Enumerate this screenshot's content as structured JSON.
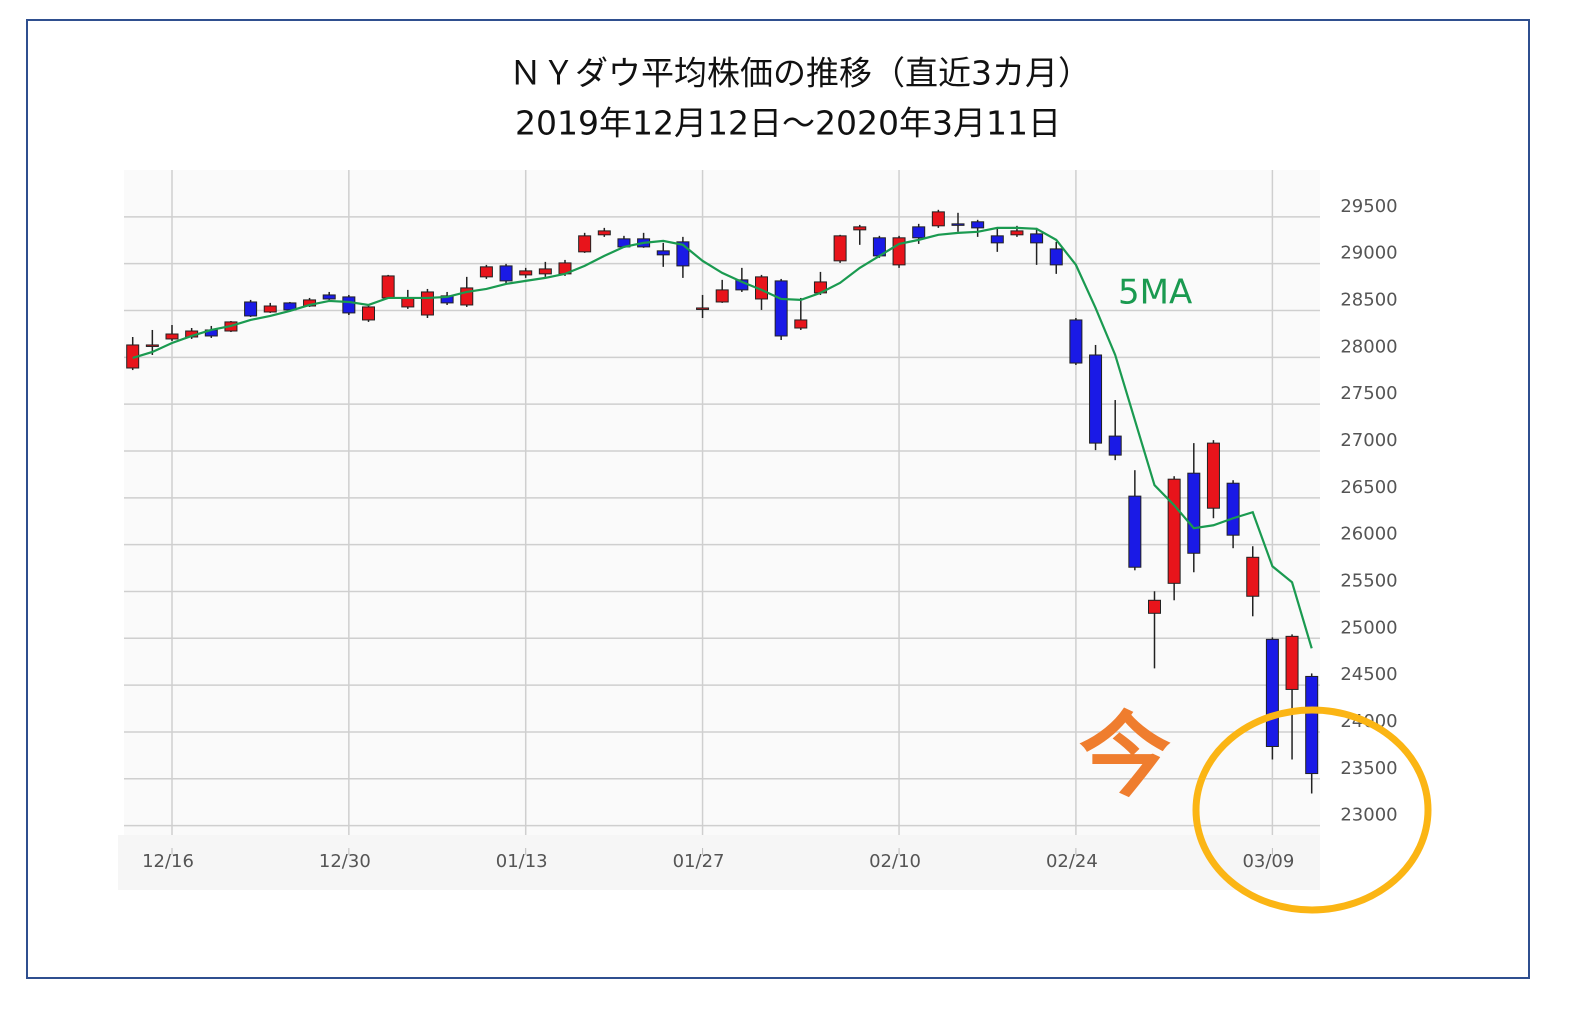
{
  "chart_data": {
    "type": "candlestick",
    "title": "ＮＹダウ平均株価の推移（直近3カ月）",
    "subtitle": "2019年12月12日～2020年3月11日",
    "categories": [
      null,
      null,
      "12/16",
      null,
      null,
      null,
      null,
      null,
      null,
      null,
      null,
      "12/30",
      null,
      null,
      null,
      null,
      null,
      null,
      null,
      null,
      "01/13",
      null,
      null,
      null,
      null,
      null,
      null,
      null,
      null,
      "01/27",
      null,
      null,
      null,
      null,
      null,
      null,
      null,
      null,
      null,
      "02/10",
      null,
      null,
      null,
      null,
      null,
      null,
      null,
      null,
      "02/24",
      null,
      null,
      null,
      null,
      null,
      null,
      null,
      null,
      null,
      "03/09",
      null,
      null
    ],
    "open": [
      27886,
      28132,
      28196,
      28217,
      28292,
      28281,
      28591,
      28484,
      28581,
      28548,
      28666,
      28645,
      28399,
      28634,
      28538,
      28452,
      28656,
      28559,
      28859,
      28976,
      28880,
      28891,
      28891,
      29126,
      29308,
      29265,
      29265,
      29137,
      29233,
      28527,
      28591,
      28827,
      28623,
      28816,
      28313,
      28688,
      29030,
      29361,
      29276,
      28987,
      29393,
      29404,
      29425,
      29447,
      29297,
      29308,
      29318,
      29158,
      28399,
      28025,
      27159,
      26518,
      25267,
      25587,
      26763,
      26389,
      26656,
      25449,
      24989,
      24454,
      24593
    ],
    "high": [
      28217,
      28292,
      28345,
      28313,
      28335,
      28388,
      28613,
      28581,
      28591,
      28634,
      28698,
      28666,
      28559,
      28880,
      28720,
      28730,
      28698,
      28859,
      28987,
      28998,
      28955,
      29019,
      29040,
      29329,
      29382,
      29297,
      29329,
      29222,
      29286,
      28666,
      28827,
      28955,
      28880,
      28837,
      28634,
      28912,
      29308,
      29414,
      29297,
      29297,
      29425,
      29575,
      29543,
      29468,
      29382,
      29404,
      29382,
      29233,
      28420,
      28132,
      27544,
      26795,
      25502,
      26731,
      27084,
      27116,
      26688,
      25983,
      25010,
      25042,
      24625
    ],
    "low": [
      27864,
      28025,
      28174,
      28196,
      28207,
      28270,
      28431,
      28474,
      28495,
      28538,
      28613,
      28452,
      28378,
      28623,
      28517,
      28420,
      28559,
      28538,
      28837,
      28784,
      28848,
      28859,
      28869,
      29115,
      29286,
      29169,
      29169,
      28966,
      28848,
      28420,
      28581,
      28698,
      28506,
      28185,
      28292,
      28666,
      29008,
      29201,
      29062,
      28955,
      29211,
      29382,
      29340,
      29286,
      29126,
      29286,
      28987,
      28891,
      27918,
      27009,
      26902,
      25726,
      24679,
      25406,
      25705,
      26282,
      25962,
      25235,
      23706,
      23706,
      23343
    ],
    "close": [
      28132,
      28132,
      28249,
      28281,
      28228,
      28378,
      28442,
      28548,
      28506,
      28613,
      28623,
      28474,
      28538,
      28869,
      28634,
      28698,
      28581,
      28741,
      28966,
      28816,
      28923,
      28944,
      29008,
      29297,
      29350,
      29179,
      29179,
      29094,
      28976,
      28527,
      28720,
      28720,
      28859,
      28228,
      28399,
      28805,
      29297,
      29393,
      29083,
      29276,
      29276,
      29553,
      29414,
      29382,
      29222,
      29350,
      29222,
      28987,
      27939,
      27084,
      26956,
      25759,
      25406,
      26699,
      25908,
      27084,
      26101,
      25865,
      23845,
      25021,
      23556
    ],
    "up_color": "#e8141b",
    "down_color": "#1a1ae6",
    "lines": [
      {
        "name": "5MA",
        "color": "#1a9a50",
        "values": [
          27993,
          28057,
          28153,
          28228,
          28292,
          28335,
          28399,
          28442,
          28495,
          28559,
          28602,
          28591,
          28559,
          28634,
          28634,
          28634,
          28645,
          28698,
          28730,
          28784,
          28816,
          28848,
          28891,
          28976,
          29083,
          29179,
          29222,
          29243,
          29201,
          29030,
          28901,
          28805,
          28720,
          28623,
          28613,
          28688,
          28795,
          28955,
          29083,
          29211,
          29254,
          29308,
          29329,
          29340,
          29382,
          29382,
          29372,
          29254,
          28987,
          28527,
          28025,
          27330,
          26635,
          26421,
          26175,
          26207,
          26282,
          26346,
          25769,
          25598,
          24893
        ]
      }
    ],
    "annotations": [
      {
        "text": "今"
      }
    ],
    "ylim": [
      22900,
      30000
    ],
    "yticks": [
      23000,
      23500,
      24000,
      24500,
      25000,
      25500,
      26000,
      26500,
      27000,
      27500,
      28000,
      28500,
      29000,
      29500
    ],
    "grid": true
  }
}
